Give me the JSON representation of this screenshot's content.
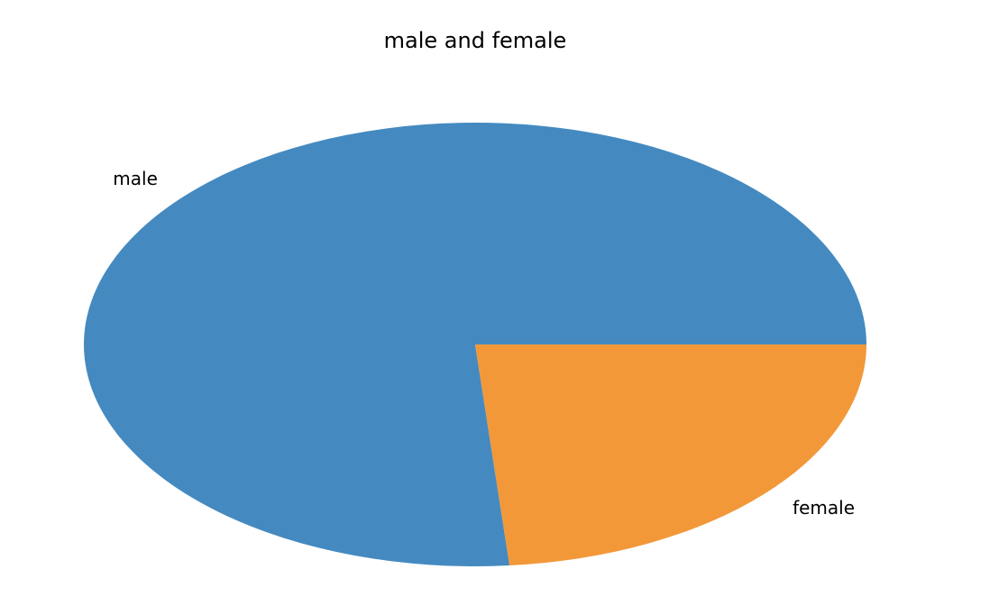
{
  "chart_data": {
    "type": "pie",
    "title": "male and female",
    "categories": [
      "male",
      "female"
    ],
    "values": [
      76.4,
      23.6
    ],
    "colors": [
      "#448ac0",
      "#f29839"
    ]
  }
}
